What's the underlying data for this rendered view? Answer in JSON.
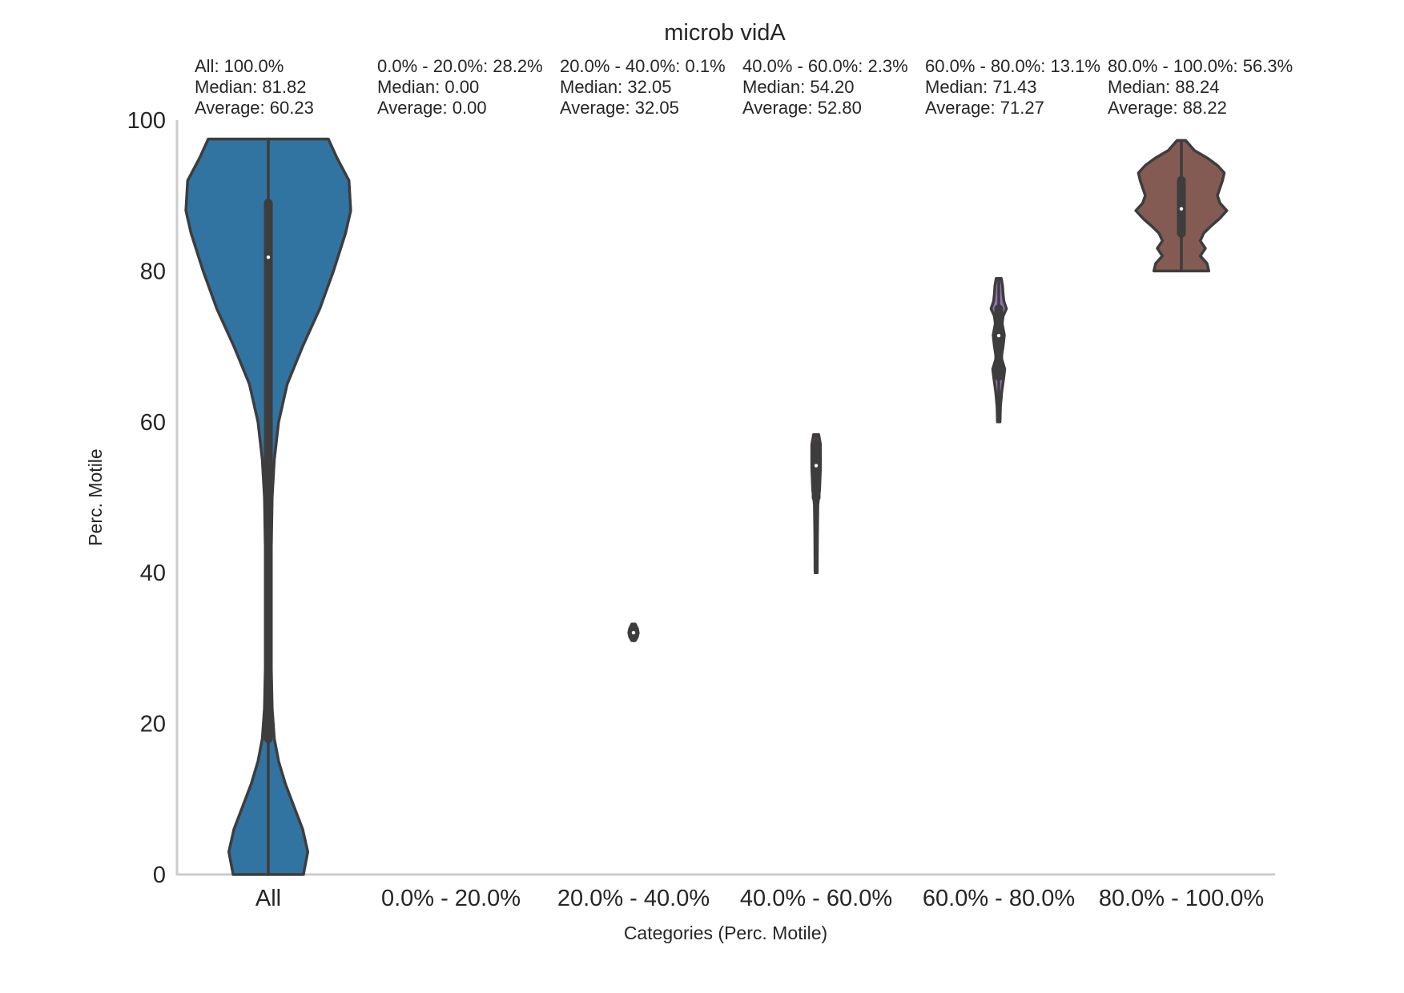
{
  "chart_data": {
    "type": "violin",
    "title": "microb vidA",
    "xlabel": "Categories (Perc. Motile)",
    "ylabel": "Perc. Motile",
    "ylim": [
      0,
      100
    ],
    "yticks": [
      0,
      20,
      40,
      60,
      80,
      100
    ],
    "grid": false,
    "categories": [
      "All",
      "0.0% - 20.0%",
      "20.0% - 40.0%",
      "40.0% - 60.0%",
      "60.0% - 80.0%",
      "80.0% - 100.0%"
    ],
    "annotations": [
      {
        "line1": "All: 100.0%",
        "line2": "Median: 81.82",
        "line3": "Average:  60.23"
      },
      {
        "line1": "0.0% - 20.0%: 28.2%",
        "line2": "Median: 0.00",
        "line3": "Average:  0.00"
      },
      {
        "line1": "20.0% - 40.0%: 0.1%",
        "line2": "Median: 32.05",
        "line3": "Average:  32.05"
      },
      {
        "line1": "40.0% - 60.0%: 2.3%",
        "line2": "Median: 54.20",
        "line3": "Average:  52.80"
      },
      {
        "line1": "60.0% - 80.0%: 13.1%",
        "line2": "Median: 71.43",
        "line3": "Average:  71.27"
      },
      {
        "line1": "80.0% - 100.0%: 56.3%",
        "line2": "Median: 88.24",
        "line3": "Average:  88.22"
      }
    ],
    "violins": [
      {
        "category": "All",
        "color": "#3274a1",
        "min": 0,
        "max": 97.5,
        "q1": 18,
        "q3": 89,
        "median": 81.82,
        "profile": [
          [
            0,
            0.41
          ],
          [
            3,
            0.46
          ],
          [
            6,
            0.4
          ],
          [
            9,
            0.3
          ],
          [
            12,
            0.2
          ],
          [
            15,
            0.12
          ],
          [
            18,
            0.07
          ],
          [
            22,
            0.045
          ],
          [
            30,
            0.03
          ],
          [
            40,
            0.03
          ],
          [
            50,
            0.045
          ],
          [
            55,
            0.07
          ],
          [
            60,
            0.12
          ],
          [
            65,
            0.22
          ],
          [
            70,
            0.4
          ],
          [
            75,
            0.6
          ],
          [
            80,
            0.76
          ],
          [
            85,
            0.9
          ],
          [
            88,
            0.96
          ],
          [
            92,
            0.94
          ],
          [
            95,
            0.8
          ],
          [
            97.5,
            0.7
          ]
        ]
      },
      {
        "category": "0.0% - 20.0%",
        "color": "#e1812c",
        "min": 0,
        "max": 0,
        "q1": 0,
        "q3": 0,
        "median": 0.0,
        "profile": []
      },
      {
        "category": "20.0% - 40.0%",
        "color": "#3a923a",
        "min": 31.0,
        "max": 33.2,
        "q1": 31.6,
        "q3": 32.6,
        "median": 32.05,
        "profile": [
          [
            31.0,
            0.02
          ],
          [
            31.5,
            0.045
          ],
          [
            32.05,
            0.055
          ],
          [
            32.6,
            0.045
          ],
          [
            33.2,
            0.02
          ]
        ]
      },
      {
        "category": "40.0% - 60.0%",
        "color": "#c03d3e",
        "min": 40.0,
        "max": 58.3,
        "q1": 50.0,
        "q3": 57.0,
        "median": 54.2,
        "profile": [
          [
            40,
            0.012
          ],
          [
            45,
            0.015
          ],
          [
            49,
            0.02
          ],
          [
            51,
            0.04
          ],
          [
            54,
            0.05
          ],
          [
            57,
            0.05
          ],
          [
            58.3,
            0.03
          ]
        ]
      },
      {
        "category": "60.0% - 80.0%",
        "color": "#9372b2",
        "min": 60.0,
        "max": 79.0,
        "q1": 66.0,
        "q3": 75.0,
        "median": 71.43,
        "profile": [
          [
            60,
            0.015
          ],
          [
            62,
            0.02
          ],
          [
            64,
            0.035
          ],
          [
            66,
            0.06
          ],
          [
            67,
            0.07
          ],
          [
            68.5,
            0.03
          ],
          [
            70,
            0.05
          ],
          [
            71.5,
            0.065
          ],
          [
            73,
            0.04
          ],
          [
            74,
            0.05
          ],
          [
            75,
            0.09
          ],
          [
            76,
            0.06
          ],
          [
            77,
            0.05
          ],
          [
            78,
            0.045
          ],
          [
            79,
            0.03
          ]
        ]
      },
      {
        "category": "80.0% - 100.0%",
        "color": "#845b53",
        "min": 80.0,
        "max": 97.3,
        "q1": 85.0,
        "q3": 92.0,
        "median": 88.24,
        "profile": [
          [
            80,
            0.32
          ],
          [
            81,
            0.3
          ],
          [
            82,
            0.22
          ],
          [
            83,
            0.28
          ],
          [
            84,
            0.22
          ],
          [
            85,
            0.26
          ],
          [
            86,
            0.35
          ],
          [
            87,
            0.45
          ],
          [
            88,
            0.53
          ],
          [
            89,
            0.45
          ],
          [
            90,
            0.42
          ],
          [
            92,
            0.48
          ],
          [
            93,
            0.5
          ],
          [
            94,
            0.42
          ],
          [
            95,
            0.3
          ],
          [
            96,
            0.15
          ],
          [
            97.3,
            0.05
          ]
        ]
      }
    ]
  }
}
